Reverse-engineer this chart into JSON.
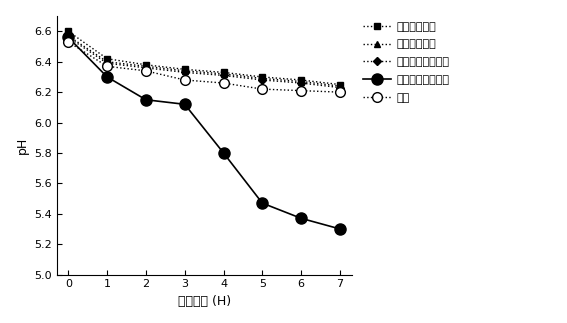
{
  "x": [
    0,
    1,
    2,
    3,
    4,
    5,
    6,
    7
  ],
  "sorbitol": [
    6.6,
    6.42,
    6.38,
    6.35,
    6.33,
    6.3,
    6.28,
    6.25
  ],
  "mannitol": [
    6.57,
    6.4,
    6.37,
    6.34,
    6.32,
    6.29,
    6.27,
    6.24
  ],
  "fructo": [
    6.56,
    6.39,
    6.36,
    6.33,
    6.31,
    6.28,
    6.26,
    6.23
  ],
  "galacto": [
    6.56,
    6.3,
    6.15,
    6.12,
    5.8,
    5.47,
    5.37,
    5.3
  ],
  "control": [
    6.53,
    6.37,
    6.34,
    6.28,
    6.26,
    6.22,
    6.21,
    6.2
  ],
  "xlabel": "発酵時間 (H)",
  "ylabel": "pH",
  "ylim": [
    5.0,
    6.7
  ],
  "yticks": [
    5.0,
    5.2,
    5.4,
    5.6,
    5.8,
    6.0,
    6.2,
    6.4,
    6.6
  ],
  "legend_sorbitol": "ソルビトール",
  "legend_mannitol": "マンニトール",
  "legend_fructo": "フラクトオリゴ糖",
  "legend_galacto": "ガラクトオリゴ糖",
  "legend_control": "対照",
  "line_color": "#000000",
  "background": "#ffffff"
}
